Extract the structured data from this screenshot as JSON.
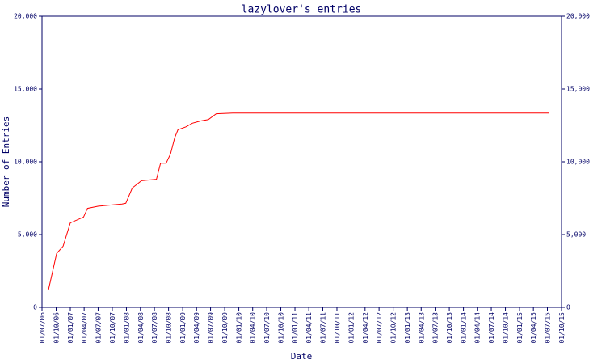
{
  "chart_data": {
    "type": "line",
    "title": "lazylover's entries",
    "x_label": "Date",
    "y_label": "Number of Entries",
    "x": [
      "2006-08-12",
      "2006-10-04",
      "2006-11-15",
      "2007-01-01",
      "2007-03-28",
      "2007-04-23",
      "2007-07-03",
      "2007-12-03",
      "2007-12-28",
      "2008-02-08",
      "2008-04-08",
      "2008-07-14",
      "2008-08-10",
      "2008-09-15",
      "2008-10-14",
      "2008-11-10",
      "2008-12-01",
      "2009-01-22",
      "2009-03-05",
      "2009-04-25",
      "2009-06-17",
      "2009-08-07",
      "2009-11-22",
      "2015-07-13"
    ],
    "series": [
      {
        "name": "entries",
        "color": "#ff0000",
        "values": [
          1200,
          3700,
          4200,
          5800,
          6200,
          6800,
          6950,
          7100,
          7150,
          8200,
          8700,
          8800,
          9900,
          9900,
          10550,
          11650,
          12200,
          12400,
          12650,
          12800,
          12900,
          13300,
          13350,
          13350
        ]
      }
    ],
    "xlim": [
      "2006-07-01",
      "2015-10-01"
    ],
    "xticks": [
      {
        "value": "2006-07-01",
        "label": "01/07/06"
      },
      {
        "value": "2006-10-01",
        "label": "01/10/06"
      },
      {
        "value": "2007-01-01",
        "label": "01/01/07"
      },
      {
        "value": "2007-04-01",
        "label": "01/04/07"
      },
      {
        "value": "2007-07-01",
        "label": "01/07/07"
      },
      {
        "value": "2007-10-01",
        "label": "01/10/07"
      },
      {
        "value": "2008-01-01",
        "label": "01/01/08"
      },
      {
        "value": "2008-04-01",
        "label": "01/04/08"
      },
      {
        "value": "2008-07-01",
        "label": "01/07/08"
      },
      {
        "value": "2008-10-01",
        "label": "01/10/08"
      },
      {
        "value": "2009-01-01",
        "label": "01/01/09"
      },
      {
        "value": "2009-04-01",
        "label": "01/04/09"
      },
      {
        "value": "2009-07-01",
        "label": "01/07/09"
      },
      {
        "value": "2009-10-01",
        "label": "01/10/09"
      },
      {
        "value": "2010-01-01",
        "label": "01/01/10"
      },
      {
        "value": "2010-04-01",
        "label": "01/04/10"
      },
      {
        "value": "2010-07-01",
        "label": "01/07/10"
      },
      {
        "value": "2010-10-01",
        "label": "01/10/10"
      },
      {
        "value": "2011-01-01",
        "label": "01/01/11"
      },
      {
        "value": "2011-04-01",
        "label": "01/04/11"
      },
      {
        "value": "2011-07-01",
        "label": "01/07/11"
      },
      {
        "value": "2011-10-01",
        "label": "01/10/11"
      },
      {
        "value": "2012-01-01",
        "label": "01/01/12"
      },
      {
        "value": "2012-04-01",
        "label": "01/04/12"
      },
      {
        "value": "2012-07-01",
        "label": "01/07/12"
      },
      {
        "value": "2012-10-01",
        "label": "01/10/12"
      },
      {
        "value": "2013-01-01",
        "label": "01/01/13"
      },
      {
        "value": "2013-04-01",
        "label": "01/04/13"
      },
      {
        "value": "2013-07-01",
        "label": "01/07/13"
      },
      {
        "value": "2013-10-01",
        "label": "01/10/13"
      },
      {
        "value": "2014-01-01",
        "label": "01/01/14"
      },
      {
        "value": "2014-04-01",
        "label": "01/04/14"
      },
      {
        "value": "2014-07-01",
        "label": "01/07/14"
      },
      {
        "value": "2014-10-01",
        "label": "01/10/14"
      },
      {
        "value": "2015-01-01",
        "label": "01/01/15"
      },
      {
        "value": "2015-04-01",
        "label": "01/04/15"
      },
      {
        "value": "2015-07-01",
        "label": "01/07/15"
      },
      {
        "value": "2015-10-01",
        "label": "01/10/15"
      }
    ],
    "ylim": [
      0,
      20000
    ],
    "yticks": [
      0,
      {
        "value": 5000,
        "label": "5,000"
      },
      {
        "value": 10000,
        "label": "10,000"
      },
      {
        "value": 15000,
        "label": "15,000"
      },
      {
        "value": 20000,
        "label": "20,000"
      }
    ],
    "right_axis": true
  }
}
